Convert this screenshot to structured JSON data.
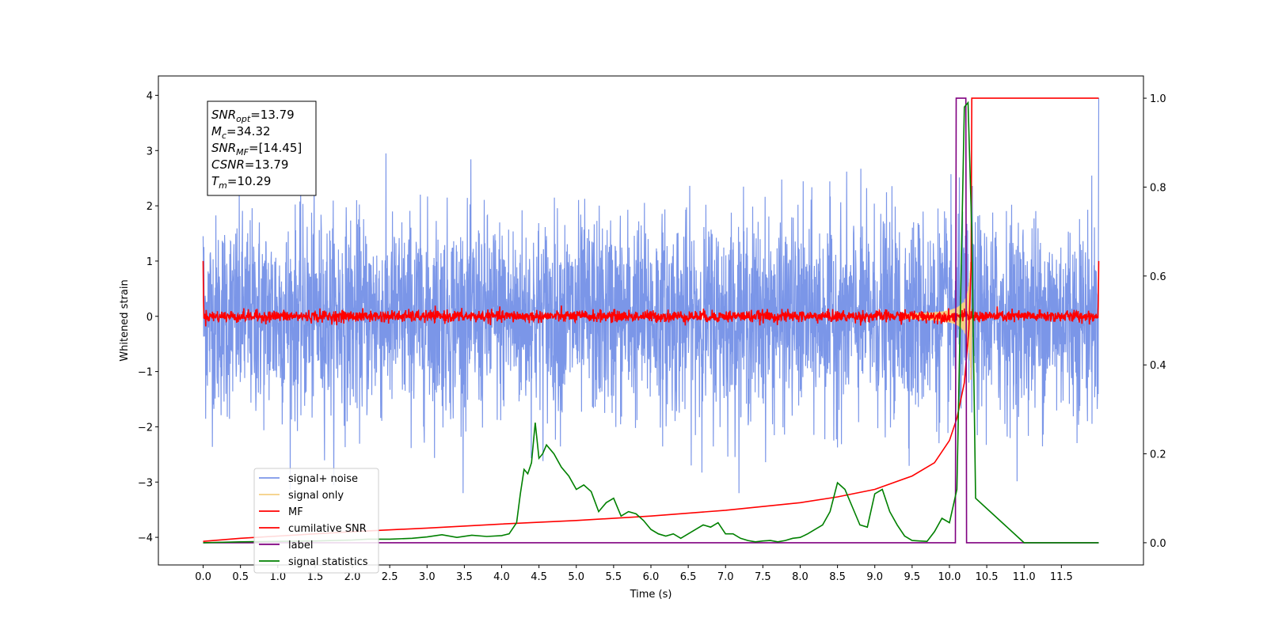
{
  "chart_data": {
    "type": "line",
    "xlabel": "Time (s)",
    "ylabel": "Whitened strain",
    "xlim": [
      -0.6,
      12.6
    ],
    "ylim": [
      -4.5,
      4.35
    ],
    "y2lim": [
      -0.05,
      1.05
    ],
    "x_ticks": [
      0.0,
      0.5,
      1.0,
      1.5,
      2.0,
      2.5,
      3.0,
      3.5,
      4.0,
      4.5,
      5.0,
      5.5,
      6.0,
      6.5,
      7.0,
      7.5,
      8.0,
      8.5,
      9.0,
      9.5,
      10.0,
      10.5,
      11.0,
      11.5
    ],
    "x_tick_labels": [
      "0.0",
      "0.5",
      "1.0",
      "1.5",
      "2.0",
      "2.5",
      "3.0",
      "3.5",
      "4.0",
      "4.5",
      "5.0",
      "5.5",
      "6.0",
      "6.5",
      "7.0",
      "7.5",
      "8.0",
      "8.5",
      "9.0",
      "9.5",
      "10.0",
      "10.5",
      "11.0",
      "11.5"
    ],
    "y_ticks": [
      -4,
      -3,
      -2,
      -1,
      0,
      1,
      2,
      3,
      4
    ],
    "y_tick_labels": [
      "−4",
      "−3",
      "−2",
      "−1",
      "0",
      "1",
      "2",
      "3",
      "4"
    ],
    "y2_ticks": [
      0.0,
      0.2,
      0.4,
      0.6,
      0.8,
      1.0
    ],
    "y2_tick_labels": [
      "0.0",
      "0.2",
      "0.4",
      "0.6",
      "0.8",
      "1.0"
    ],
    "legend_placement": "lower-left",
    "annotation": {
      "lines": [
        {
          "base": "SNR",
          "sub": "opt",
          "rest": "=13.79"
        },
        {
          "base": "M",
          "sub": "c",
          "rest": "=34.32"
        },
        {
          "base": "SNR",
          "sub": "MF",
          "rest": "=[14.45]"
        },
        {
          "base": "CSNR",
          "sub": "",
          "rest": "=13.79"
        },
        {
          "base": "T",
          "sub": "m",
          "rest": "=10.29"
        }
      ]
    },
    "series": [
      {
        "name": "signal+ noise",
        "color": "#7b96e8",
        "axis": "left",
        "kind": "noise",
        "x_range": [
          0.0,
          12.0
        ],
        "amplitude_range": [
          -3.2,
          3.45
        ]
      },
      {
        "name": "signal only",
        "color": "#f5cf82",
        "axis": "left",
        "kind": "chirp",
        "peak_time": 10.29,
        "peak_amplitude": 1.0
      },
      {
        "name": "MF",
        "color": "#ff0000",
        "axis": "left",
        "kind": "mf",
        "x_range": [
          0.0,
          12.0
        ],
        "edge_values": [
          1.0,
          1.0
        ],
        "band": 0.12
      },
      {
        "name": "cumilative SNR",
        "color": "#ff0000",
        "axis": "right",
        "x": [
          0.0,
          0.5,
          1.0,
          2.0,
          3.0,
          4.0,
          5.0,
          6.0,
          7.0,
          8.0,
          8.5,
          9.0,
          9.5,
          9.8,
          10.0,
          10.1,
          10.2,
          10.26,
          10.29,
          10.3,
          12.0
        ],
        "y": [
          0.003,
          0.01,
          0.015,
          0.025,
          0.033,
          0.042,
          0.05,
          0.06,
          0.073,
          0.09,
          0.103,
          0.12,
          0.15,
          0.18,
          0.23,
          0.28,
          0.36,
          0.48,
          0.62,
          1.0,
          1.0
        ]
      },
      {
        "name": "label",
        "color": "#800080",
        "axis": "right",
        "x": [
          0.0,
          10.08,
          10.09,
          10.22,
          10.23,
          12.0
        ],
        "y": [
          0.0,
          0.0,
          1.0,
          1.0,
          0.0,
          0.0
        ]
      },
      {
        "name": "signal statistics",
        "color": "#008000",
        "axis": "right",
        "x": [
          0.0,
          0.5,
          1.0,
          1.5,
          2.0,
          2.2,
          2.5,
          2.8,
          3.0,
          3.2,
          3.4,
          3.6,
          3.8,
          4.0,
          4.1,
          4.2,
          4.25,
          4.3,
          4.35,
          4.4,
          4.45,
          4.5,
          4.55,
          4.6,
          4.7,
          4.8,
          4.9,
          5.0,
          5.1,
          5.2,
          5.3,
          5.4,
          5.5,
          5.6,
          5.7,
          5.8,
          5.9,
          6.0,
          6.1,
          6.2,
          6.3,
          6.4,
          6.5,
          6.6,
          6.7,
          6.8,
          6.9,
          7.0,
          7.1,
          7.2,
          7.3,
          7.4,
          7.5,
          7.6,
          7.7,
          7.8,
          7.9,
          8.0,
          8.1,
          8.2,
          8.3,
          8.4,
          8.5,
          8.6,
          8.7,
          8.8,
          8.9,
          9.0,
          9.1,
          9.2,
          9.3,
          9.4,
          9.5,
          9.6,
          9.7,
          9.8,
          9.9,
          10.0,
          10.1,
          10.15,
          10.2,
          10.25,
          10.3,
          10.35,
          11.0,
          12.0
        ],
        "y": [
          0.0,
          0.002,
          0.003,
          0.004,
          0.006,
          0.008,
          0.008,
          0.01,
          0.013,
          0.018,
          0.012,
          0.017,
          0.014,
          0.016,
          0.02,
          0.045,
          0.11,
          0.165,
          0.155,
          0.18,
          0.27,
          0.19,
          0.2,
          0.22,
          0.2,
          0.17,
          0.15,
          0.12,
          0.13,
          0.115,
          0.07,
          0.09,
          0.1,
          0.06,
          0.07,
          0.065,
          0.05,
          0.03,
          0.02,
          0.015,
          0.02,
          0.01,
          0.02,
          0.03,
          0.04,
          0.035,
          0.045,
          0.02,
          0.02,
          0.01,
          0.005,
          0.002,
          0.004,
          0.005,
          0.002,
          0.005,
          0.01,
          0.012,
          0.02,
          0.03,
          0.04,
          0.07,
          0.135,
          0.12,
          0.08,
          0.04,
          0.035,
          0.11,
          0.12,
          0.07,
          0.04,
          0.015,
          0.005,
          0.004,
          0.003,
          0.025,
          0.055,
          0.045,
          0.12,
          0.55,
          0.98,
          0.99,
          0.7,
          0.1,
          0.0,
          0.0
        ]
      }
    ]
  }
}
